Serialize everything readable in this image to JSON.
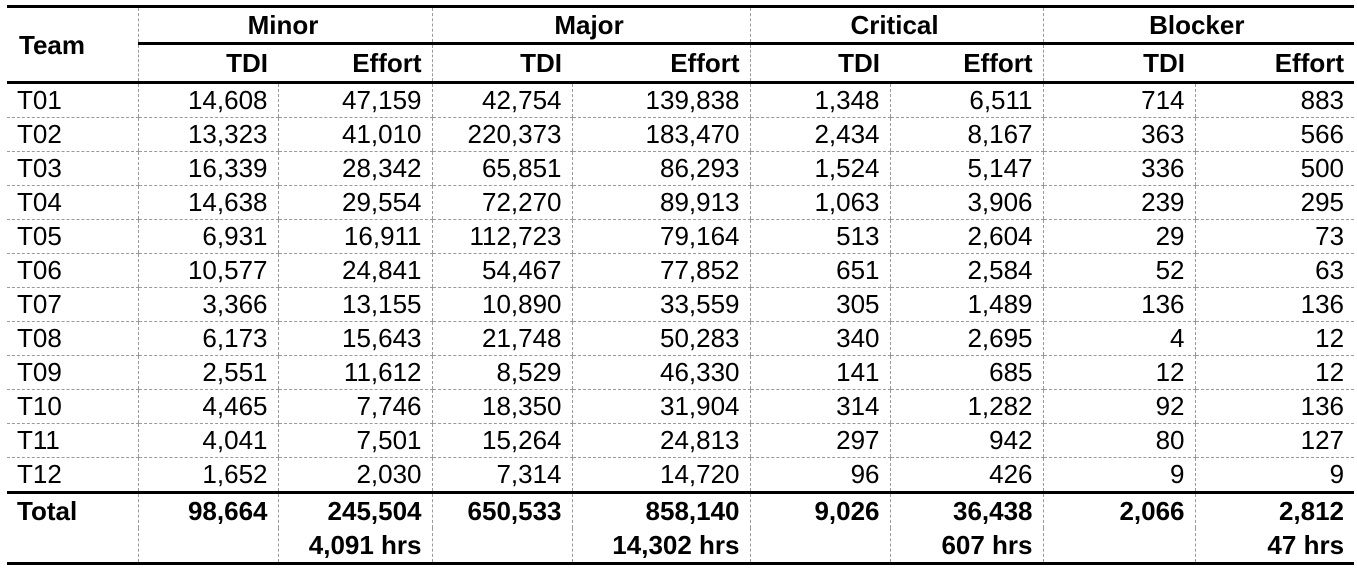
{
  "header": {
    "team_label": "Team",
    "groups": [
      "Minor",
      "Major",
      "Critical",
      "Blocker"
    ],
    "sub": [
      "TDI",
      "Effort"
    ]
  },
  "rows": [
    {
      "team": "T01",
      "values": [
        "14,608",
        "47,159",
        "42,754",
        "139,838",
        "1,348",
        "6,511",
        "714",
        "883"
      ]
    },
    {
      "team": "T02",
      "values": [
        "13,323",
        "41,010",
        "220,373",
        "183,470",
        "2,434",
        "8,167",
        "363",
        "566"
      ]
    },
    {
      "team": "T03",
      "values": [
        "16,339",
        "28,342",
        "65,851",
        "86,293",
        "1,524",
        "5,147",
        "336",
        "500"
      ]
    },
    {
      "team": "T04",
      "values": [
        "14,638",
        "29,554",
        "72,270",
        "89,913",
        "1,063",
        "3,906",
        "239",
        "295"
      ]
    },
    {
      "team": "T05",
      "values": [
        "6,931",
        "16,911",
        "112,723",
        "79,164",
        "513",
        "2,604",
        "29",
        "73"
      ]
    },
    {
      "team": "T06",
      "values": [
        "10,577",
        "24,841",
        "54,467",
        "77,852",
        "651",
        "2,584",
        "52",
        "63"
      ]
    },
    {
      "team": "T07",
      "values": [
        "3,366",
        "13,155",
        "10,890",
        "33,559",
        "305",
        "1,489",
        "136",
        "136"
      ]
    },
    {
      "team": "T08",
      "values": [
        "6,173",
        "15,643",
        "21,748",
        "50,283",
        "340",
        "2,695",
        "4",
        "12"
      ]
    },
    {
      "team": "T09",
      "values": [
        "2,551",
        "11,612",
        "8,529",
        "46,330",
        "141",
        "685",
        "12",
        "12"
      ]
    },
    {
      "team": "T10",
      "values": [
        "4,465",
        "7,746",
        "18,350",
        "31,904",
        "314",
        "1,282",
        "92",
        "136"
      ]
    },
    {
      "team": "T11",
      "values": [
        "4,041",
        "7,501",
        "15,264",
        "24,813",
        "297",
        "942",
        "80",
        "127"
      ]
    },
    {
      "team": "T12",
      "values": [
        "1,652",
        "2,030",
        "7,314",
        "14,720",
        "96",
        "426",
        "9",
        "9"
      ]
    }
  ],
  "total": {
    "label": "Total",
    "values": [
      "98,664",
      "245,504",
      "650,533",
      "858,140",
      "9,026",
      "36,438",
      "2,066",
      "2,812"
    ],
    "hours": [
      "",
      "4,091 hrs",
      "",
      "14,302 hrs",
      "",
      "607 hrs",
      "",
      "47 hrs"
    ]
  }
}
